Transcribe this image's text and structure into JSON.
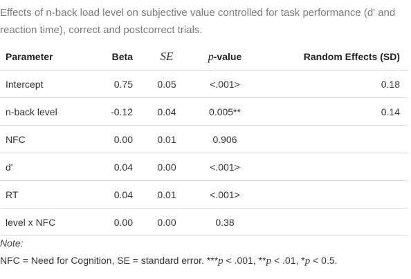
{
  "caption": "Effects of n-back load level on subjective value controlled for task performance (d' and reaction time), correct and postcorrect trials.",
  "table": {
    "headers": {
      "parameter": "Parameter",
      "beta": "Beta",
      "se": "SE",
      "p_prefix": "p",
      "p_suffix": "-value",
      "random_effects": "Random Effects (SD)"
    },
    "rows": [
      {
        "parameter": "Intercept",
        "beta": "0.75",
        "se": "0.05",
        "p": "<.001>",
        "re": "0.18"
      },
      {
        "parameter": "n-back level",
        "beta": "-0.12",
        "se": "0.04",
        "p": "0.005**",
        "re": "0.14"
      },
      {
        "parameter": "NFC",
        "beta": "0.00",
        "se": "0.01",
        "p": "0.906",
        "re": ""
      },
      {
        "parameter": "d'",
        "beta": "0.04",
        "se": "0.00",
        "p": "<.001>",
        "re": ""
      },
      {
        "parameter": "RT",
        "beta": "0.04",
        "se": "0.01",
        "p": "<.001>",
        "re": ""
      },
      {
        "parameter": "level x NFC",
        "beta": "0.00",
        "se": "0.00",
        "p": "0.38",
        "re": ""
      }
    ]
  },
  "note": {
    "label": "Note:",
    "part1": "NFC = Need for Cognition, SE = standard error. ***",
    "p1": "p",
    "part2": " < .001, **",
    "p2": "p",
    "part3": " < .01, *",
    "p3": "p",
    "part4": " < 0.5."
  }
}
